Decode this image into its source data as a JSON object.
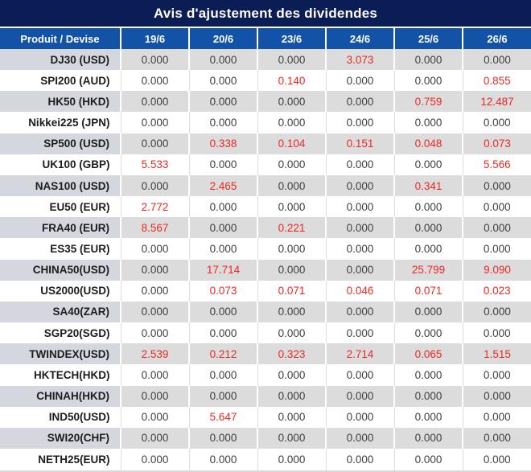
{
  "title": "Avis d'ajustement des dividendes",
  "table": {
    "product_header": "Produit / Devise",
    "date_headers": [
      "19/6",
      "20/6",
      "23/6",
      "24/6",
      "25/6",
      "26/6"
    ],
    "rows": [
      {
        "product": "DJ30 (USD)",
        "values": [
          "0.000",
          "0.000",
          "0.000",
          "3.073",
          "0.000",
          "0.000"
        ]
      },
      {
        "product": "SPI200 (AUD)",
        "values": [
          "0.000",
          "0.000",
          "0.140",
          "0.000",
          "0.000",
          "0.855"
        ]
      },
      {
        "product": "HK50 (HKD)",
        "values": [
          "0.000",
          "0.000",
          "0.000",
          "0.000",
          "0.759",
          "12.487"
        ]
      },
      {
        "product": "Nikkei225 (JPN)",
        "values": [
          "0.000",
          "0.000",
          "0.000",
          "0.000",
          "0.000",
          "0.000"
        ]
      },
      {
        "product": "SP500 (USD)",
        "values": [
          "0.000",
          "0.338",
          "0.104",
          "0.151",
          "0.048",
          "0.073"
        ]
      },
      {
        "product": "UK100 (GBP)",
        "values": [
          "5.533",
          "0.000",
          "0.000",
          "0.000",
          "0.000",
          "5.566"
        ]
      },
      {
        "product": "NAS100 (USD)",
        "values": [
          "0.000",
          "2.465",
          "0.000",
          "0.000",
          "0.341",
          "0.000"
        ]
      },
      {
        "product": "EU50 (EUR)",
        "values": [
          "2.772",
          "0.000",
          "0.000",
          "0.000",
          "0.000",
          "0.000"
        ]
      },
      {
        "product": "FRA40 (EUR)",
        "values": [
          "8.567",
          "0.000",
          "0.221",
          "0.000",
          "0.000",
          "0.000"
        ]
      },
      {
        "product": "ES35 (EUR)",
        "values": [
          "0.000",
          "0.000",
          "0.000",
          "0.000",
          "0.000",
          "0.000"
        ]
      },
      {
        "product": "CHINA50(USD)",
        "values": [
          "0.000",
          "17.714",
          "0.000",
          "0.000",
          "25.799",
          "9.090"
        ]
      },
      {
        "product": "US2000(USD)",
        "values": [
          "0.000",
          "0.073",
          "0.071",
          "0.046",
          "0.071",
          "0.023"
        ]
      },
      {
        "product": "SA40(ZAR)",
        "values": [
          "0.000",
          "0.000",
          "0.000",
          "0.000",
          "0.000",
          "0.000"
        ]
      },
      {
        "product": "SGP20(SGD)",
        "values": [
          "0.000",
          "0.000",
          "0.000",
          "0.000",
          "0.000",
          "0.000"
        ]
      },
      {
        "product": "TWINDEX(USD)",
        "values": [
          "2.539",
          "0.212",
          "0.323",
          "2.714",
          "0.065",
          "1.515"
        ]
      },
      {
        "product": "HKTECH(HKD)",
        "values": [
          "0.000",
          "0.000",
          "0.000",
          "0.000",
          "0.000",
          "0.000"
        ]
      },
      {
        "product": "CHINAH(HKD)",
        "values": [
          "0.000",
          "0.000",
          "0.000",
          "0.000",
          "0.000",
          "0.000"
        ]
      },
      {
        "product": "IND50(USD)",
        "values": [
          "0.000",
          "5.647",
          "0.000",
          "0.000",
          "0.000",
          "0.000"
        ]
      },
      {
        "product": "SWI20(CHF)",
        "values": [
          "0.000",
          "0.000",
          "0.000",
          "0.000",
          "0.000",
          "0.000"
        ]
      },
      {
        "product": "NETH25(EUR)",
        "values": [
          "0.000",
          "0.000",
          "0.000",
          "0.000",
          "0.000",
          "0.000"
        ]
      }
    ]
  },
  "colors": {
    "title_bg": "#0a1e55",
    "header_bg": "#1253a8",
    "row_alt_bg": "#dcdcdc",
    "label_alt_bg": "#d4d8de",
    "value_nonzero": "#ee2723",
    "value_zero": "#3f3f3f"
  }
}
